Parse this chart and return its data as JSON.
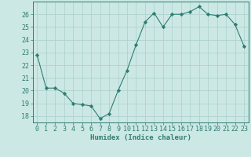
{
  "x": [
    0,
    1,
    2,
    3,
    4,
    5,
    6,
    7,
    8,
    9,
    10,
    11,
    12,
    13,
    14,
    15,
    16,
    17,
    18,
    19,
    20,
    21,
    22,
    23
  ],
  "y": [
    22.8,
    20.2,
    20.2,
    19.8,
    19.0,
    18.9,
    18.8,
    17.8,
    18.2,
    20.0,
    21.6,
    23.6,
    25.4,
    26.1,
    25.0,
    26.0,
    26.0,
    26.2,
    26.6,
    26.0,
    25.9,
    26.0,
    25.2,
    23.5
  ],
  "line_color": "#2e7d72",
  "marker": "D",
  "bg_color": "#cce8e4",
  "grid_color": "#aacfcc",
  "axis_color": "#2e7d72",
  "xlabel": "Humidex (Indice chaleur)",
  "xlabel_fontsize": 6.5,
  "tick_fontsize": 6,
  "ylim": [
    17.5,
    27.0
  ],
  "yticks": [
    18,
    19,
    20,
    21,
    22,
    23,
    24,
    25,
    26
  ],
  "xticks": [
    0,
    1,
    2,
    3,
    4,
    5,
    6,
    7,
    8,
    9,
    10,
    11,
    12,
    13,
    14,
    15,
    16,
    17,
    18,
    19,
    20,
    21,
    22,
    23
  ]
}
